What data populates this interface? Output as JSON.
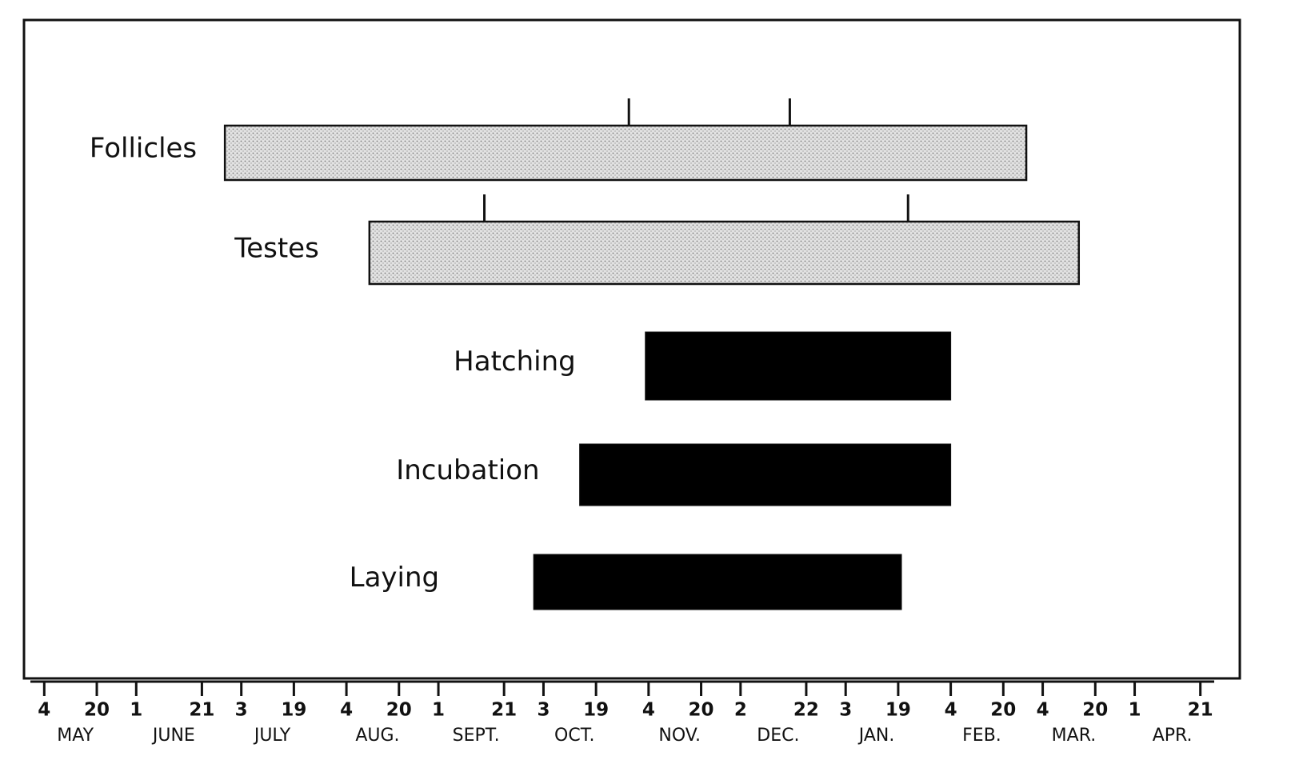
{
  "chart_data": {
    "type": "gantt",
    "xlim": [
      0,
      358
    ],
    "xticks": [
      {
        "value": 3,
        "label": "4"
      },
      {
        "value": 19,
        "label": "20"
      },
      {
        "value": 31,
        "label": "1"
      },
      {
        "value": 51,
        "label": "21"
      },
      {
        "value": 63,
        "label": "3"
      },
      {
        "value": 79,
        "label": "19"
      },
      {
        "value": 95,
        "label": "4"
      },
      {
        "value": 111,
        "label": "20"
      },
      {
        "value": 123,
        "label": "1"
      },
      {
        "value": 143,
        "label": "21"
      },
      {
        "value": 155,
        "label": "3"
      },
      {
        "value": 171,
        "label": "19"
      },
      {
        "value": 187,
        "label": "4"
      },
      {
        "value": 203,
        "label": "20"
      },
      {
        "value": 215,
        "label": "2"
      },
      {
        "value": 235,
        "label": "22"
      },
      {
        "value": 247,
        "label": "3"
      },
      {
        "value": 263,
        "label": "19"
      },
      {
        "value": 279,
        "label": "4"
      },
      {
        "value": 295,
        "label": "20"
      },
      {
        "value": 307,
        "label": "4"
      },
      {
        "value": 323,
        "label": "20"
      },
      {
        "value": 335,
        "label": "1"
      },
      {
        "value": 355,
        "label": "21"
      }
    ],
    "months": [
      "MAY",
      "JUNE",
      "JULY",
      "AUG.",
      "SEPT.",
      "OCT.",
      "NOV.",
      "DEC.",
      "JAN.",
      "FEB.",
      "MAR.",
      "APR."
    ],
    "series": [
      {
        "name": "Follicles",
        "color": "#d4d4d4",
        "pattern": "stipple",
        "start": 58,
        "end": 302,
        "marks": [
          181,
          230
        ]
      },
      {
        "name": "Testes",
        "color": "#d4d4d4",
        "pattern": "stipple",
        "start": 102,
        "end": 318,
        "marks": [
          137,
          266
        ]
      },
      {
        "name": "Hatching",
        "color": "#000000",
        "start": 186,
        "end": 279
      },
      {
        "name": "Incubation",
        "color": "#000000",
        "start": 166,
        "end": 279
      },
      {
        "name": "Laying",
        "color": "#000000",
        "start": 152,
        "end": 264
      }
    ]
  }
}
